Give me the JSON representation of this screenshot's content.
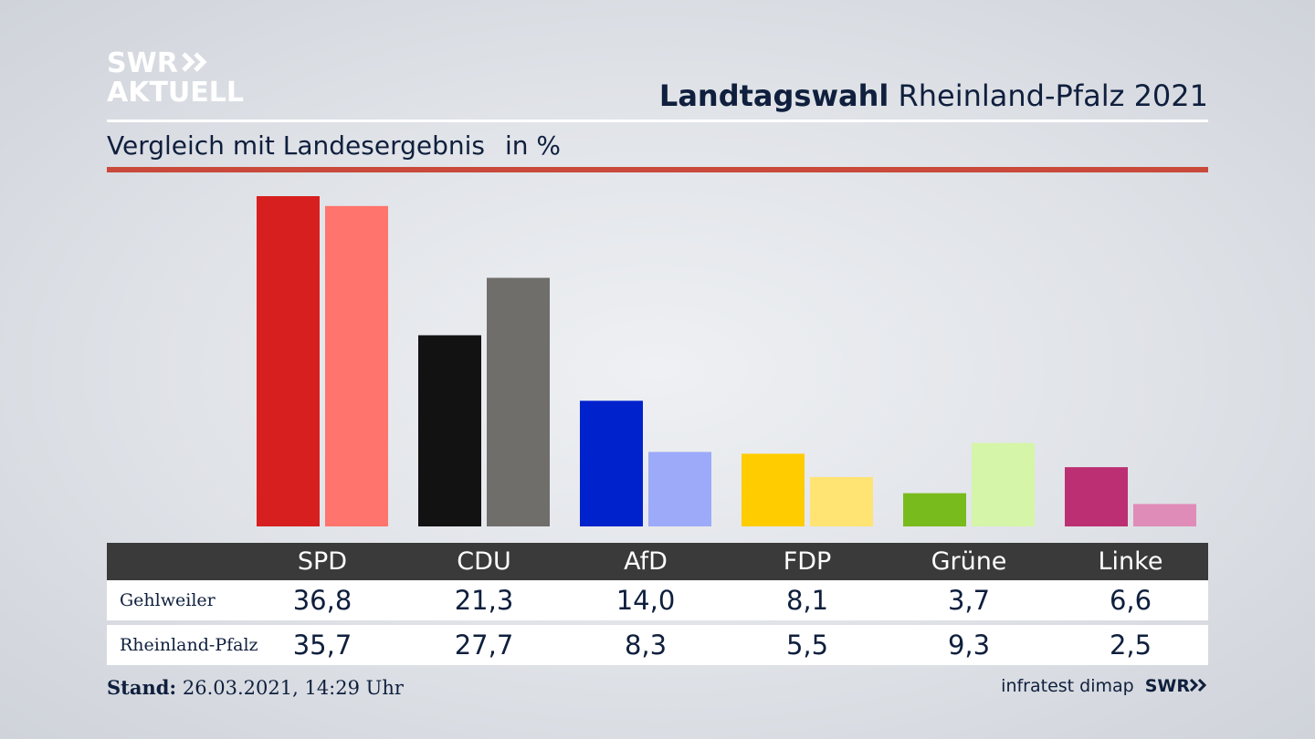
{
  "logo": {
    "line1": "SWR",
    "line2": "AKTUELL"
  },
  "header": {
    "title_bold": "Landtagswahl",
    "title_rest": "Rheinland-Pfalz 2021"
  },
  "subtitle": {
    "text": "Vergleich mit Landesergebnis",
    "unit": "in %"
  },
  "colors": {
    "accent_rule": "#c9493a",
    "SPD": [
      "#d71f1f",
      "#ff746c"
    ],
    "CDU": [
      "#121212",
      "#706e6b"
    ],
    "AfD": [
      "#0022cc",
      "#9daaf9"
    ],
    "FDP": [
      "#ffcc00",
      "#ffe373"
    ],
    "Grüne": [
      "#78bb1c",
      "#d5f5a8"
    ],
    "Linke": [
      "#bc2f72",
      "#e08cb8"
    ]
  },
  "chart_data": {
    "type": "bar",
    "title": "Landtagswahl Rheinland-Pfalz 2021",
    "subtitle": "Vergleich mit Landesergebnis in %",
    "categories": [
      "SPD",
      "CDU",
      "AfD",
      "FDP",
      "Grüne",
      "Linke"
    ],
    "series": [
      {
        "name": "Gehlweiler",
        "values": [
          36.8,
          21.3,
          14.0,
          8.1,
          3.7,
          6.6
        ]
      },
      {
        "name": "Rheinland-Pfalz",
        "values": [
          35.7,
          27.7,
          8.3,
          5.5,
          9.3,
          2.5
        ]
      }
    ],
    "ylim": [
      0,
      36.8
    ]
  },
  "table": {
    "headers": [
      "SPD",
      "CDU",
      "AfD",
      "FDP",
      "Grüne",
      "Linke"
    ],
    "rows": [
      {
        "label": "Gehlweiler",
        "values": [
          "36,8",
          "21,3",
          "14,0",
          "8,1",
          "3,7",
          "6,6"
        ]
      },
      {
        "label": "Rheinland-Pfalz",
        "values": [
          "35,7",
          "27,7",
          "8,3",
          "5,5",
          "9,3",
          "2,5"
        ]
      }
    ]
  },
  "footer": {
    "stand_label": "Stand:",
    "stand_value": "26.03.2021, 14:29 Uhr",
    "source": "infratest dimap",
    "brand": "SWR"
  }
}
